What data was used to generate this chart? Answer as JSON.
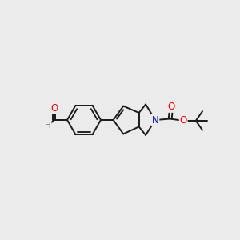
{
  "background_color": "#ebebeb",
  "bond_color": "#1a1a1a",
  "bond_width": 1.4,
  "atom_colors": {
    "O": "#ff0000",
    "N": "#0000cc",
    "H": "#777777"
  },
  "font_size_atom": 8.5,
  "fig_width": 3.0,
  "fig_height": 3.0,
  "dpi": 100,
  "xlim": [
    0.0,
    10.0
  ],
  "ylim": [
    3.2,
    6.8
  ]
}
